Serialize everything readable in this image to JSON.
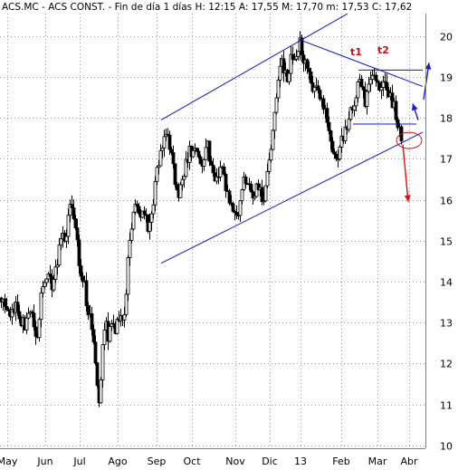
{
  "header": {
    "text": "ACS.MC - ACS CONST. - Fin de día 1 días  H: 12:15  A: 17,55  M: 17,70  m: 17,53  C: 17,62"
  },
  "chart_data": {
    "type": "candlestick",
    "title": "ACS.MC - ACS CONST. - Fin de día 1 días  H: 12:15  A: 17,55  M: 17,70  m: 17,53  C: 17,62",
    "y_ticks": [
      10,
      11,
      12,
      13,
      14,
      15,
      16,
      17,
      18,
      19,
      20
    ],
    "ylim": [
      9.95,
      20.55
    ],
    "y_axis_position": "right",
    "grid": true,
    "x_labels": [
      "May",
      "Jun",
      "Jul",
      "Ago",
      "Sep",
      "Oct",
      "Nov",
      "Dic",
      "13",
      "Feb",
      "Mar",
      "Abr"
    ],
    "quote": {
      "open": 17.55,
      "high": 17.7,
      "low": 17.53,
      "close": 17.62
    },
    "price_path": [
      [
        0,
        13.6
      ],
      [
        10,
        13.1
      ],
      [
        18,
        13.4
      ],
      [
        26,
        12.9
      ],
      [
        34,
        13.3
      ],
      [
        40,
        12.6
      ],
      [
        45,
        13.6
      ],
      [
        52,
        14.2
      ],
      [
        58,
        13.9
      ],
      [
        62,
        14.4
      ],
      [
        67,
        15.2
      ],
      [
        72,
        14.9
      ],
      [
        76,
        16.0
      ],
      [
        80,
        15.6
      ],
      [
        84,
        15.0
      ],
      [
        88,
        14.4
      ],
      [
        92,
        14.0
      ],
      [
        96,
        13.4
      ],
      [
        100,
        13.1
      ],
      [
        103,
        12.5
      ],
      [
        106,
        11.9
      ],
      [
        108,
        10.8
      ],
      [
        110,
        11.5
      ],
      [
        113,
        12.3
      ],
      [
        116,
        13.0
      ],
      [
        120,
        12.6
      ],
      [
        124,
        13.2
      ],
      [
        128,
        12.8
      ],
      [
        132,
        13.3
      ],
      [
        136,
        13.0
      ],
      [
        139,
        13.6
      ],
      [
        141,
        14.6
      ],
      [
        144,
        15.3
      ],
      [
        148,
        15.8
      ],
      [
        153,
        15.6
      ],
      [
        158,
        15.7
      ],
      [
        163,
        15.4
      ],
      [
        168,
        15.9
      ],
      [
        174,
        16.8
      ],
      [
        178,
        17.2
      ],
      [
        183,
        17.7
      ],
      [
        188,
        17.2
      ],
      [
        192,
        16.6
      ],
      [
        197,
        16.1
      ],
      [
        201,
        16.4
      ],
      [
        205,
        16.9
      ],
      [
        210,
        17.2
      ],
      [
        216,
        17.2
      ],
      [
        222,
        16.9
      ],
      [
        228,
        17.4
      ],
      [
        233,
        16.9
      ],
      [
        238,
        16.5
      ],
      [
        244,
        16.8
      ],
      [
        250,
        16.3
      ],
      [
        255,
        15.9
      ],
      [
        260,
        15.6
      ],
      [
        265,
        15.9
      ],
      [
        270,
        16.6
      ],
      [
        274,
        16.3
      ],
      [
        279,
        16.0
      ],
      [
        284,
        16.5
      ],
      [
        289,
        15.9
      ],
      [
        294,
        16.4
      ],
      [
        298,
        17.0
      ],
      [
        302,
        17.8
      ],
      [
        306,
        18.6
      ],
      [
        310,
        19.4
      ],
      [
        314,
        19.2
      ],
      [
        318,
        19.0
      ],
      [
        322,
        19.6
      ],
      [
        326,
        19.4
      ],
      [
        330,
        19.9
      ],
      [
        334,
        19.5
      ],
      [
        338,
        19.2
      ],
      [
        344,
        18.8
      ],
      [
        350,
        18.6
      ],
      [
        355,
        18.4
      ],
      [
        360,
        18.0
      ],
      [
        364,
        17.4
      ],
      [
        368,
        16.9
      ],
      [
        372,
        17.1
      ],
      [
        376,
        17.3
      ],
      [
        380,
        17.7
      ],
      [
        384,
        17.9
      ],
      [
        388,
        18.3
      ],
      [
        392,
        18.5
      ],
      [
        396,
        19.0
      ],
      [
        399,
        18.9
      ],
      [
        402,
        18.4
      ],
      [
        406,
        18.6
      ],
      [
        410,
        18.9
      ],
      [
        414,
        19.0
      ],
      [
        418,
        18.6
      ],
      [
        422,
        18.9
      ],
      [
        426,
        18.8
      ],
      [
        430,
        18.5
      ],
      [
        434,
        18.3
      ],
      [
        437,
        18.1
      ],
      [
        440,
        17.8
      ],
      [
        442,
        17.6
      ],
      [
        444,
        17.5
      ]
    ],
    "annotations": {
      "labels": [
        "t1",
        "t2"
      ],
      "channel_upper": [
        [
          178,
          17.95
        ],
        [
          384,
          20.55
        ]
      ],
      "channel_lower": [
        [
          178,
          14.45
        ],
        [
          467,
          17.65
        ]
      ],
      "triangle_upper": [
        [
          330,
          19.92
        ],
        [
          467,
          18.77
        ]
      ],
      "triangle_base": [
        [
          396,
          19.17
        ],
        [
          467,
          19.17
        ]
      ],
      "support": [
        [
          390,
          17.85
        ],
        [
          460,
          17.85
        ]
      ],
      "target_down": [
        [
          445,
          17.35
        ],
        [
          451,
          15.95
        ]
      ],
      "target_up_1": [
        [
          462,
          17.95
        ],
        [
          456,
          18.35
        ]
      ],
      "target_up_2": [
        [
          468,
          18.45
        ],
        [
          474,
          19.35
        ]
      ],
      "circle_center": [
        452,
        17.45
      ]
    }
  }
}
